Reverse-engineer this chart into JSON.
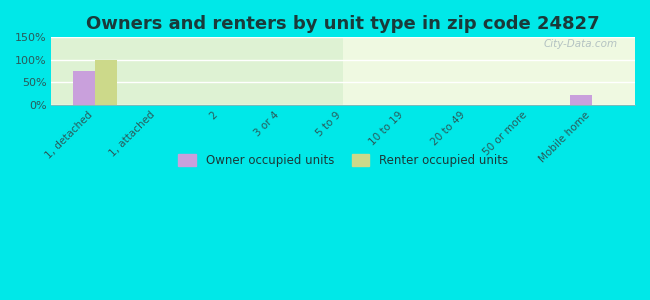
{
  "title": "Owners and renters by unit type in zip code 24827",
  "categories": [
    "1, detached",
    "1, attached",
    "2",
    "3 or 4",
    "5 to 9",
    "10 to 19",
    "20 to 49",
    "50 or more",
    "Mobile home"
  ],
  "owner_values": [
    75,
    0,
    0,
    0,
    0,
    0,
    0,
    0,
    22
  ],
  "renter_values": [
    100,
    0,
    0,
    0,
    0,
    0,
    0,
    0,
    0
  ],
  "owner_color": "#c9a0dc",
  "renter_color": "#ccd98a",
  "background_outer": "#00e8e8",
  "background_plot_top": "#e8f5d8",
  "background_plot_bottom": "#f0fae8",
  "ylim": [
    0,
    150
  ],
  "yticks": [
    0,
    50,
    100,
    150
  ],
  "ytick_labels": [
    "0%",
    "50%",
    "100%",
    "150%"
  ],
  "bar_width": 0.35,
  "title_fontsize": 13,
  "title_color": "#1a3a3a",
  "tick_color": "#2a5a5a",
  "watermark": "City-Data.com",
  "legend_owner": "Owner occupied units",
  "legend_renter": "Renter occupied units"
}
